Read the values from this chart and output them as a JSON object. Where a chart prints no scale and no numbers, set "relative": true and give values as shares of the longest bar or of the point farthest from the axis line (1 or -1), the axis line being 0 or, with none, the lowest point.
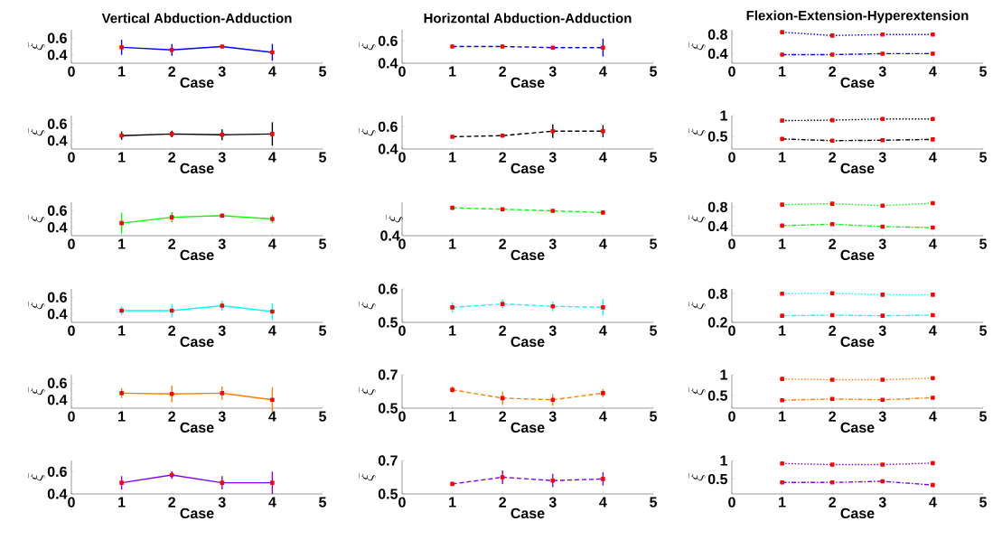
{
  "chart_data": [
    {
      "type": "line",
      "title": "Vertical Abduction-Adduction",
      "xlabel": "Case",
      "ylabel": "\\bar{\\xi}",
      "x": [
        1,
        2,
        3,
        4
      ],
      "xlim": [
        0,
        5
      ],
      "xticks": [
        0,
        1,
        2,
        3,
        4,
        5
      ],
      "ylim": [
        0.3,
        0.7
      ],
      "yticks": [
        0.4,
        0.6
      ],
      "marker": "square",
      "line_style": "solid",
      "series": [
        {
          "color": "#0000ff",
          "values": [
            0.49,
            0.46,
            0.5,
            0.43
          ],
          "errors": [
            0.09,
            0.07,
            null,
            0.1
          ]
        }
      ]
    },
    {
      "type": "line",
      "title": "Horizontal Abduction-Adduction",
      "xlabel": "Case",
      "ylabel": "\\bar{\\xi}",
      "x": [
        1,
        2,
        3,
        4
      ],
      "xlim": [
        0,
        5
      ],
      "xticks": [
        0,
        1,
        2,
        3,
        4,
        5
      ],
      "ylim": [
        0.4,
        0.7
      ],
      "yticks": [
        0.4,
        0.6
      ],
      "marker": "square",
      "line_style": "dashed",
      "series": [
        {
          "color": "#0000ff",
          "values": [
            0.55,
            0.55,
            0.54,
            0.54
          ],
          "errors": [
            null,
            null,
            null,
            0.08
          ]
        }
      ]
    },
    {
      "type": "line",
      "title": "Flexion-Extension-Hyperextension",
      "xlabel": "Case",
      "ylabel": "\\bar{\\xi}",
      "x": [
        1,
        2,
        3,
        4
      ],
      "xlim": [
        0,
        5
      ],
      "xticks": [
        0,
        1,
        2,
        3,
        4,
        5
      ],
      "ylim": [
        0.2,
        0.9
      ],
      "yticks": [
        0.4,
        0.8
      ],
      "marker": "square",
      "series": [
        {
          "color": "#0000ff",
          "line_style": "dotted",
          "values": [
            0.85,
            0.78,
            0.8,
            0.8
          ]
        },
        {
          "color": "#0000ff",
          "line_style": "dashdot",
          "values": [
            0.38,
            0.38,
            0.4,
            0.4
          ]
        }
      ]
    },
    {
      "type": "line",
      "xlabel": "Case",
      "ylabel": "\\bar{\\xi}",
      "x": [
        1,
        2,
        3,
        4
      ],
      "xlim": [
        0,
        5
      ],
      "xticks": [
        0,
        1,
        2,
        3,
        4,
        5
      ],
      "ylim": [
        0.3,
        0.7
      ],
      "yticks": [
        0.4,
        0.6
      ],
      "marker": "square",
      "line_style": "solid",
      "series": [
        {
          "color": "#000000",
          "values": [
            0.46,
            0.48,
            0.47,
            0.48
          ],
          "errors": [
            0.05,
            0.04,
            0.065,
            0.14
          ]
        }
      ]
    },
    {
      "type": "line",
      "xlabel": "Case",
      "ylabel": "\\bar{\\xi}",
      "x": [
        1,
        2,
        3,
        4
      ],
      "xlim": [
        0,
        5
      ],
      "xticks": [
        0,
        1,
        2,
        3,
        4,
        5
      ],
      "ylim": [
        0.4,
        0.7
      ],
      "yticks": [
        0.4,
        0.6
      ],
      "marker": "square",
      "line_style": "dashed",
      "series": [
        {
          "color": "#000000",
          "values": [
            0.51,
            0.52,
            0.56,
            0.56
          ],
          "errors": [
            null,
            null,
            0.06,
            0.055
          ]
        }
      ]
    },
    {
      "type": "line",
      "xlabel": "Case",
      "ylabel": "\\bar{\\xi}",
      "x": [
        1,
        2,
        3,
        4
      ],
      "xlim": [
        0,
        5
      ],
      "xticks": [
        0,
        1,
        2,
        3,
        4,
        5
      ],
      "ylim": [
        0.2,
        1
      ],
      "yticks": [
        0.5,
        1
      ],
      "marker": "square",
      "series": [
        {
          "color": "#000000",
          "line_style": "dotted",
          "values": [
            0.88,
            0.89,
            0.92,
            0.92
          ]
        },
        {
          "color": "#000000",
          "line_style": "dashdot",
          "values": [
            0.44,
            0.4,
            0.41,
            0.43
          ]
        }
      ]
    },
    {
      "type": "line",
      "xlabel": "Case",
      "ylabel": "\\bar{\\xi}",
      "x": [
        1,
        2,
        3,
        4
      ],
      "xlim": [
        0,
        5
      ],
      "xticks": [
        0,
        1,
        2,
        3,
        4,
        5
      ],
      "ylim": [
        0.3,
        0.7
      ],
      "yticks": [
        0.4,
        0.6
      ],
      "marker": "square",
      "line_style": "solid",
      "series": [
        {
          "color": "#00ff00",
          "values": [
            0.45,
            0.52,
            0.54,
            0.5
          ],
          "errors": [
            0.125,
            0.06,
            null,
            0.05
          ]
        }
      ]
    },
    {
      "type": "line",
      "xlabel": "Case",
      "ylabel": "\\bar{\\xi}",
      "x": [
        1,
        2,
        3,
        4
      ],
      "relative": true,
      "xlim": [
        0,
        5
      ],
      "xticks": [
        0,
        1,
        2,
        3,
        4,
        5
      ],
      "annotations": [
        "0.4"
      ],
      "marker": "square",
      "line_style": "dashed",
      "series": [
        {
          "color": "#00ff00",
          "values": [
            1,
            0.95,
            0.89,
            0.83
          ]
        }
      ]
    },
    {
      "type": "line",
      "xlabel": "Case",
      "ylabel": "\\bar{\\xi}",
      "x": [
        1,
        2,
        3,
        4
      ],
      "xlim": [
        0,
        5
      ],
      "xticks": [
        0,
        1,
        2,
        3,
        4,
        5
      ],
      "ylim": [
        0.2,
        0.9
      ],
      "yticks": [
        0.4,
        0.8
      ],
      "marker": "square",
      "series": [
        {
          "color": "#00ff00",
          "line_style": "dotted",
          "values": [
            0.85,
            0.87,
            0.83,
            0.88
          ]
        },
        {
          "color": "#00ff00",
          "line_style": "dashdot",
          "values": [
            0.41,
            0.44,
            0.39,
            0.37
          ]
        }
      ]
    },
    {
      "type": "line",
      "xlabel": "Case",
      "ylabel": "\\bar{\\xi}",
      "x": [
        1,
        2,
        3,
        4
      ],
      "xlim": [
        0,
        5
      ],
      "xticks": [
        0,
        1,
        2,
        3,
        4,
        5
      ],
      "ylim": [
        0.3,
        0.7
      ],
      "yticks": [
        0.4,
        0.6
      ],
      "marker": "square",
      "line_style": "solid",
      "series": [
        {
          "color": "#00ffff",
          "values": [
            0.44,
            0.44,
            0.5,
            0.43
          ],
          "errors": [
            0.05,
            0.08,
            0.06,
            0.1
          ]
        }
      ]
    },
    {
      "type": "line",
      "xlabel": "Case",
      "ylabel": "\\bar{\\xi}",
      "x": [
        1,
        2,
        3,
        4
      ],
      "xlim": [
        0,
        5
      ],
      "xticks": [
        0,
        1,
        2,
        3,
        4,
        5
      ],
      "ylim": [
        0.5,
        0.6
      ],
      "yticks": [
        0.5,
        0.6
      ],
      "marker": "square",
      "line_style": "dashed",
      "series": [
        {
          "color": "#00ffff",
          "values": [
            0.545,
            0.555,
            0.548,
            0.545
          ],
          "errors": [
            0.015,
            0.013,
            0.015,
            0.025
          ]
        }
      ]
    },
    {
      "type": "line",
      "xlabel": "Case",
      "ylabel": "\\bar{\\xi}",
      "x": [
        1,
        2,
        3,
        4
      ],
      "xlim": [
        0,
        5
      ],
      "xticks": [
        0,
        1,
        2,
        3,
        4,
        5
      ],
      "ylim": [
        0.2,
        0.9
      ],
      "yticks": [
        0.2,
        0.8
      ],
      "marker": "square",
      "series": [
        {
          "color": "#00ffff",
          "line_style": "dotted",
          "values": [
            0.8,
            0.81,
            0.78,
            0.78
          ]
        },
        {
          "color": "#00ffff",
          "line_style": "dashdot",
          "values": [
            0.34,
            0.35,
            0.34,
            0.35
          ]
        }
      ]
    },
    {
      "type": "line",
      "xlabel": "Case",
      "ylabel": "\\bar{\\xi}",
      "x": [
        1,
        2,
        3,
        4
      ],
      "xlim": [
        0,
        5
      ],
      "xticks": [
        0,
        1,
        2,
        3,
        4,
        5
      ],
      "ylim": [
        0.3,
        0.7
      ],
      "yticks": [
        0.4,
        0.6
      ],
      "marker": "square",
      "line_style": "solid",
      "series": [
        {
          "color": "#ff8000",
          "values": [
            0.48,
            0.47,
            0.48,
            0.4
          ],
          "errors": [
            0.06,
            0.1,
            0.08,
            0.15
          ]
        }
      ]
    },
    {
      "type": "line",
      "xlabel": "Case",
      "ylabel": "\\bar{\\xi}",
      "x": [
        1,
        2,
        3,
        4
      ],
      "xlim": [
        0,
        5
      ],
      "xticks": [
        0,
        1,
        2,
        3,
        4,
        5
      ],
      "ylim": [
        0.5,
        0.7
      ],
      "yticks": [
        0.5,
        0.7
      ],
      "marker": "square",
      "line_style": "dashed",
      "series": [
        {
          "color": "#ff8000",
          "values": [
            0.61,
            0.56,
            0.55,
            0.59
          ],
          "errors": [
            0.02,
            0.04,
            0.035,
            0.025
          ]
        }
      ]
    },
    {
      "type": "line",
      "xlabel": "Case",
      "ylabel": "\\bar{\\xi}",
      "x": [
        1,
        2,
        3,
        4
      ],
      "xlim": [
        0,
        5
      ],
      "xticks": [
        0,
        1,
        2,
        3,
        4,
        5
      ],
      "ylim": [
        0.2,
        1
      ],
      "yticks": [
        0.5,
        1
      ],
      "marker": "square",
      "series": [
        {
          "color": "#ff8000",
          "line_style": "dotted",
          "values": [
            0.9,
            0.88,
            0.88,
            0.92
          ]
        },
        {
          "color": "#ff8000",
          "line_style": "dashdot",
          "values": [
            0.39,
            0.42,
            0.4,
            0.45
          ]
        }
      ]
    },
    {
      "type": "line",
      "xlabel": "Case",
      "ylabel": "\\bar{\\xi}",
      "x": [
        1,
        2,
        3,
        4
      ],
      "xlim": [
        0,
        5
      ],
      "xticks": [
        0,
        1,
        2,
        3,
        4,
        5
      ],
      "ylim": [
        0.4,
        0.7
      ],
      "yticks": [
        0.4,
        0.6
      ],
      "marker": "square",
      "line_style": "solid",
      "series": [
        {
          "color": "#8000ff",
          "values": [
            0.5,
            0.57,
            0.5,
            0.5
          ],
          "errors": [
            0.06,
            0.035,
            0.06,
            0.1
          ]
        }
      ]
    },
    {
      "type": "line",
      "xlabel": "Case",
      "ylabel": "\\bar{\\xi}",
      "x": [
        1,
        2,
        3,
        4
      ],
      "xlim": [
        0,
        5
      ],
      "xticks": [
        0,
        1,
        2,
        3,
        4,
        5
      ],
      "ylim": [
        0.5,
        0.7
      ],
      "yticks": [
        0.5,
        0.7
      ],
      "marker": "square",
      "line_style": "dashed",
      "series": [
        {
          "color": "#8000ff",
          "values": [
            0.56,
            0.6,
            0.58,
            0.59
          ],
          "errors": [
            null,
            0.04,
            0.04,
            0.04
          ]
        }
      ]
    },
    {
      "type": "line",
      "xlabel": "Case",
      "ylabel": "\\bar{\\xi}",
      "x": [
        1,
        2,
        3,
        4
      ],
      "xlim": [
        0,
        5
      ],
      "xticks": [
        0,
        1,
        2,
        3,
        4,
        5
      ],
      "ylim": [
        0.1,
        1
      ],
      "yticks": [
        0.5,
        1
      ],
      "marker": "square",
      "series": [
        {
          "color": "#8000ff",
          "line_style": "dotted",
          "values": [
            0.92,
            0.89,
            0.89,
            0.93
          ]
        },
        {
          "color": "#8000ff",
          "line_style": "dashdot",
          "values": [
            0.41,
            0.41,
            0.44,
            0.34
          ]
        }
      ]
    }
  ]
}
